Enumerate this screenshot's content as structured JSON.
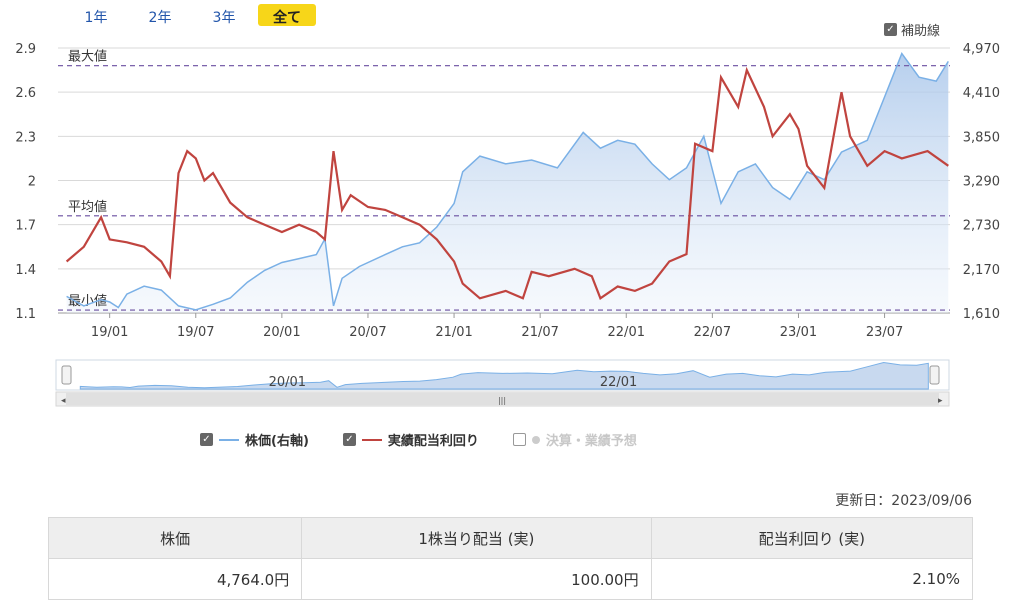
{
  "period_tabs": [
    {
      "label": "1年",
      "active": false
    },
    {
      "label": "2年",
      "active": false
    },
    {
      "label": "3年",
      "active": false
    },
    {
      "label": "全て",
      "active": true
    }
  ],
  "aux_lines_toggle": {
    "label": "補助線",
    "checked": true
  },
  "chart_data": {
    "type": "line",
    "x_ticks": [
      "19/01",
      "19/07",
      "20/01",
      "20/07",
      "21/01",
      "21/07",
      "22/01",
      "22/07",
      "23/01",
      "23/07"
    ],
    "left_axis_ticks": [
      "2.9",
      "2.6",
      "2.3",
      "2",
      "1.7",
      "1.4",
      "1.1"
    ],
    "right_axis_ticks": [
      "4,970",
      "4,410",
      "3,850",
      "3,290",
      "2,730",
      "2,170",
      "1,610"
    ],
    "ylim_left": [
      1.1,
      2.9
    ],
    "ylim_right": [
      1610,
      4970
    ],
    "reference_lines": [
      {
        "label": "最大値",
        "value": 2.78
      },
      {
        "label": "平均値",
        "value": 1.76
      },
      {
        "label": "最小値",
        "value": 1.12
      }
    ],
    "series": [
      {
        "name": "株価(右軸)",
        "axis": "right",
        "color": "#7ab0e6",
        "points": [
          [
            2018.75,
            1820
          ],
          [
            2018.85,
            1700
          ],
          [
            2018.95,
            1780
          ],
          [
            2019.0,
            1750
          ],
          [
            2019.05,
            1680
          ],
          [
            2019.1,
            1850
          ],
          [
            2019.2,
            1950
          ],
          [
            2019.3,
            1900
          ],
          [
            2019.4,
            1700
          ],
          [
            2019.5,
            1650
          ],
          [
            2019.6,
            1720
          ],
          [
            2019.7,
            1800
          ],
          [
            2019.8,
            2000
          ],
          [
            2019.9,
            2150
          ],
          [
            2020.0,
            2250
          ],
          [
            2020.1,
            2300
          ],
          [
            2020.2,
            2350
          ],
          [
            2020.25,
            2550
          ],
          [
            2020.3,
            1700
          ],
          [
            2020.35,
            2050
          ],
          [
            2020.45,
            2200
          ],
          [
            2020.6,
            2350
          ],
          [
            2020.7,
            2450
          ],
          [
            2020.8,
            2500
          ],
          [
            2020.9,
            2700
          ],
          [
            2021.0,
            3000
          ],
          [
            2021.05,
            3400
          ],
          [
            2021.15,
            3600
          ],
          [
            2021.3,
            3500
          ],
          [
            2021.45,
            3550
          ],
          [
            2021.6,
            3450
          ],
          [
            2021.75,
            3900
          ],
          [
            2021.85,
            3700
          ],
          [
            2021.95,
            3800
          ],
          [
            2022.05,
            3750
          ],
          [
            2022.15,
            3500
          ],
          [
            2022.25,
            3300
          ],
          [
            2022.35,
            3450
          ],
          [
            2022.45,
            3850
          ],
          [
            2022.55,
            3000
          ],
          [
            2022.65,
            3400
          ],
          [
            2022.75,
            3500
          ],
          [
            2022.85,
            3200
          ],
          [
            2022.95,
            3050
          ],
          [
            2023.05,
            3400
          ],
          [
            2023.15,
            3300
          ],
          [
            2023.25,
            3650
          ],
          [
            2023.4,
            3800
          ],
          [
            2023.5,
            4350
          ],
          [
            2023.6,
            4900
          ],
          [
            2023.7,
            4600
          ],
          [
            2023.8,
            4550
          ],
          [
            2023.87,
            4800
          ]
        ]
      },
      {
        "name": "実績配当利回り",
        "axis": "left",
        "color": "#c0443f",
        "points": [
          [
            2018.75,
            1.45
          ],
          [
            2018.85,
            1.55
          ],
          [
            2018.95,
            1.75
          ],
          [
            2019.0,
            1.6
          ],
          [
            2019.1,
            1.58
          ],
          [
            2019.2,
            1.55
          ],
          [
            2019.3,
            1.45
          ],
          [
            2019.35,
            1.35
          ],
          [
            2019.4,
            2.05
          ],
          [
            2019.45,
            2.2
          ],
          [
            2019.5,
            2.15
          ],
          [
            2019.55,
            2.0
          ],
          [
            2019.6,
            2.05
          ],
          [
            2019.7,
            1.85
          ],
          [
            2019.8,
            1.75
          ],
          [
            2019.9,
            1.7
          ],
          [
            2020.0,
            1.65
          ],
          [
            2020.1,
            1.7
          ],
          [
            2020.2,
            1.65
          ],
          [
            2020.25,
            1.6
          ],
          [
            2020.3,
            2.2
          ],
          [
            2020.35,
            1.8
          ],
          [
            2020.4,
            1.9
          ],
          [
            2020.5,
            1.82
          ],
          [
            2020.6,
            1.8
          ],
          [
            2020.7,
            1.75
          ],
          [
            2020.8,
            1.7
          ],
          [
            2020.9,
            1.6
          ],
          [
            2021.0,
            1.45
          ],
          [
            2021.05,
            1.3
          ],
          [
            2021.15,
            1.2
          ],
          [
            2021.3,
            1.25
          ],
          [
            2021.4,
            1.2
          ],
          [
            2021.45,
            1.38
          ],
          [
            2021.55,
            1.35
          ],
          [
            2021.7,
            1.4
          ],
          [
            2021.8,
            1.35
          ],
          [
            2021.85,
            1.2
          ],
          [
            2021.95,
            1.28
          ],
          [
            2022.05,
            1.25
          ],
          [
            2022.15,
            1.3
          ],
          [
            2022.25,
            1.45
          ],
          [
            2022.35,
            1.5
          ],
          [
            2022.4,
            2.25
          ],
          [
            2022.5,
            2.2
          ],
          [
            2022.55,
            2.7
          ],
          [
            2022.6,
            2.6
          ],
          [
            2022.65,
            2.5
          ],
          [
            2022.7,
            2.75
          ],
          [
            2022.8,
            2.5
          ],
          [
            2022.85,
            2.3
          ],
          [
            2022.95,
            2.45
          ],
          [
            2023.0,
            2.35
          ],
          [
            2023.05,
            2.1
          ],
          [
            2023.15,
            1.95
          ],
          [
            2023.25,
            2.6
          ],
          [
            2023.3,
            2.3
          ],
          [
            2023.4,
            2.1
          ],
          [
            2023.5,
            2.2
          ],
          [
            2023.6,
            2.15
          ],
          [
            2023.75,
            2.2
          ],
          [
            2023.87,
            2.1
          ]
        ]
      }
    ]
  },
  "navigator": {
    "labels": [
      "20/01",
      "22/01"
    ],
    "scroll_grip": "|||"
  },
  "legend": [
    {
      "label": "株価(右軸)",
      "checked": true,
      "color": "#7ab0e6"
    },
    {
      "label": "実績配当利回り",
      "checked": true,
      "color": "#c0443f"
    },
    {
      "label": "決算・業績予想",
      "checked": false,
      "color": "#cccccc"
    }
  ],
  "updated": "更新日：2023/09/06",
  "summary_table": {
    "headers": [
      "株価",
      "1株当り配当 (実)",
      "配当利回り (実)"
    ],
    "values": [
      "4,764.0円",
      "100.00円",
      "2.10%"
    ]
  }
}
